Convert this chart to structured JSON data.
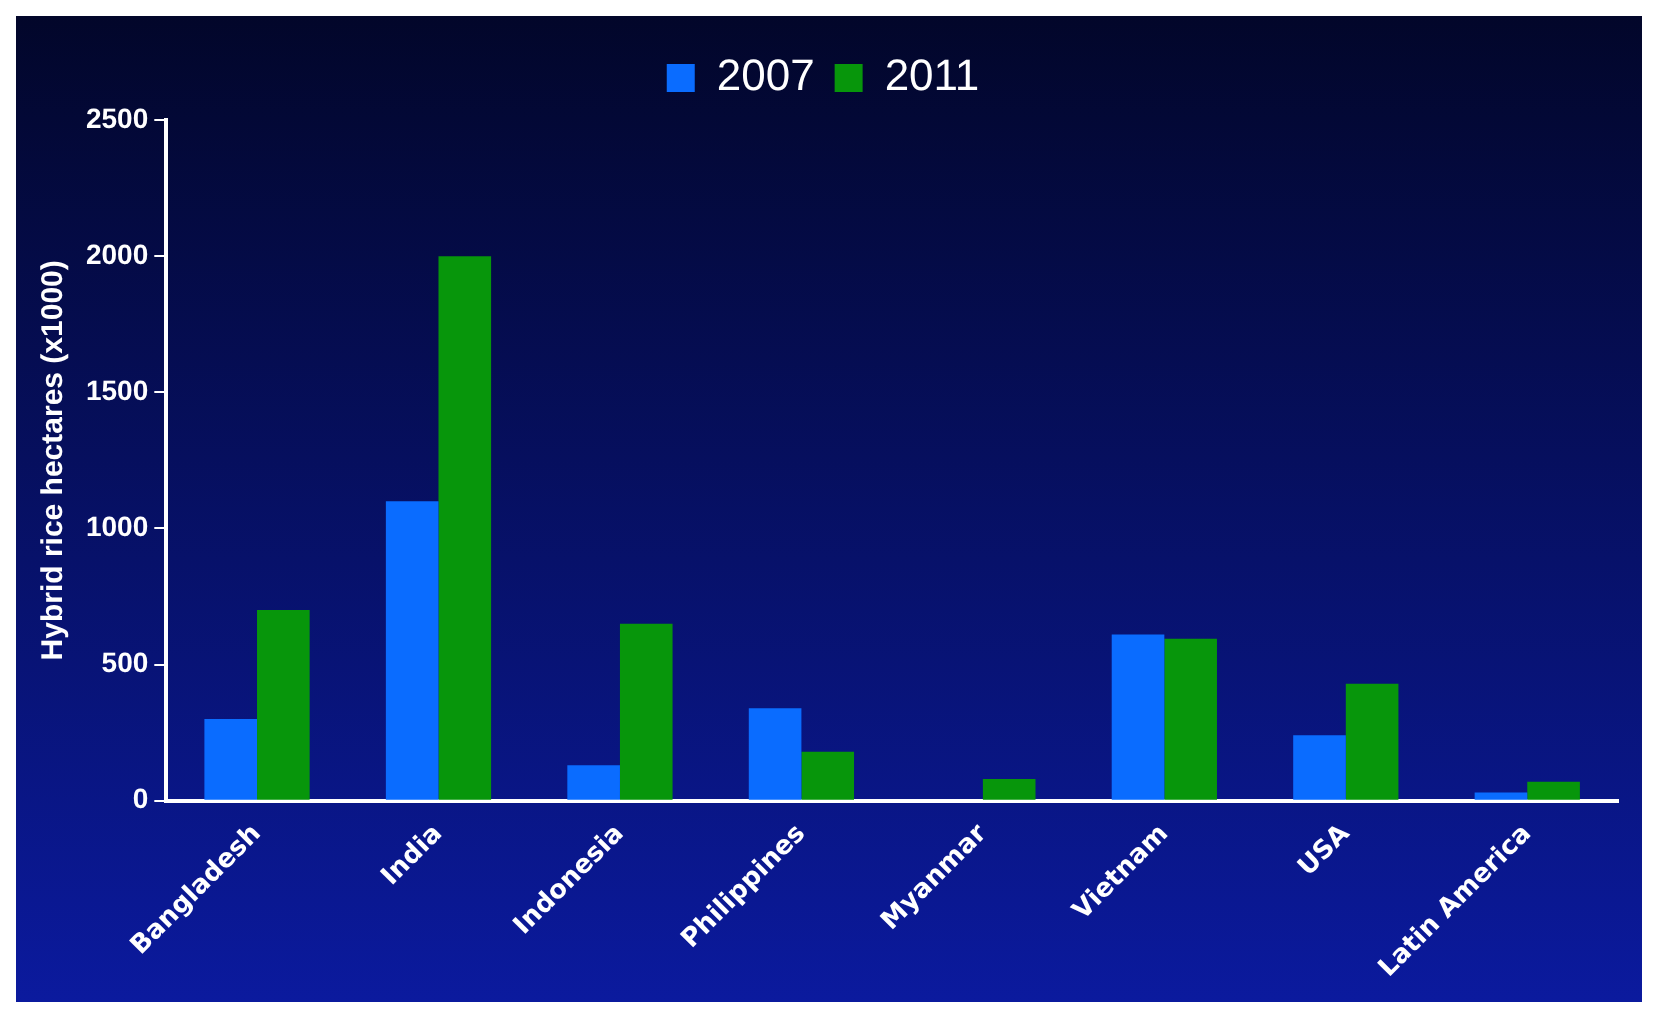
{
  "chart_data": {
    "type": "bar",
    "ylabel": "Hybrid rice hectares (x1000)",
    "categories": [
      "Bangladesh",
      "India",
      "Indonesia",
      "Philippines",
      "Myanmar",
      "Vietnam",
      "USA",
      "Latin America"
    ],
    "series": [
      {
        "name": "2007",
        "color": "#0a6cff",
        "values": [
          300,
          1100,
          130,
          340,
          0,
          610,
          240,
          30
        ]
      },
      {
        "name": "2011",
        "color": "#07960b",
        "values": [
          700,
          2000,
          650,
          180,
          80,
          595,
          430,
          70
        ]
      }
    ],
    "ylim": [
      0,
      2500
    ],
    "yticks": [
      0,
      500,
      1000,
      1500,
      2000,
      2500
    ],
    "grid": false,
    "legend": "top"
  }
}
